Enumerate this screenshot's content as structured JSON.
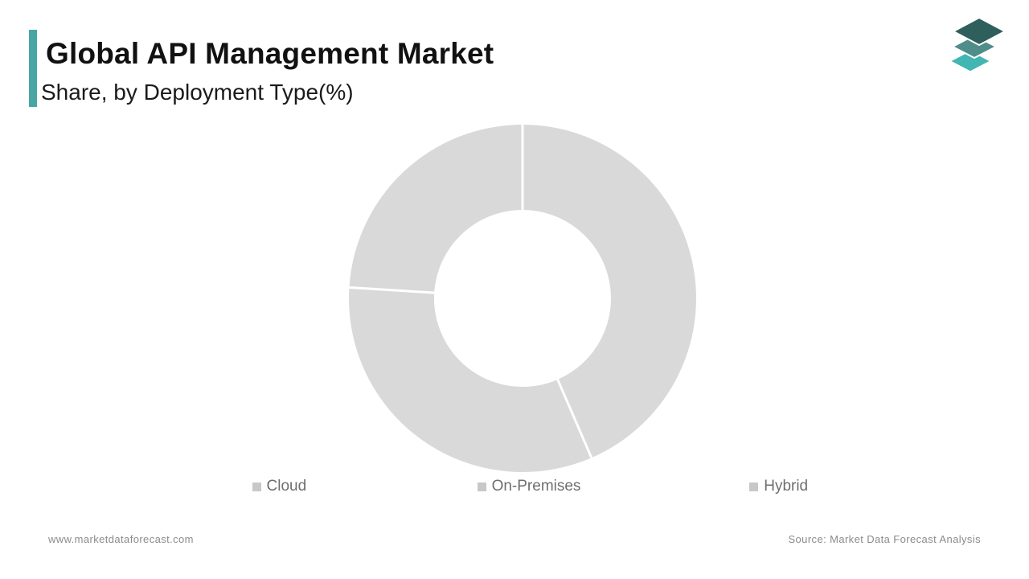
{
  "header": {
    "title": "Global API Management Market",
    "subtitle": "Share, by Deployment Type(%)",
    "accent_color": "#48A7A5"
  },
  "logo": {
    "name": "market-data-forecast-logo",
    "layer_colors": [
      "#41B6B2",
      "#4F8D8A",
      "#2E5F5D"
    ]
  },
  "chart_data": {
    "type": "pie",
    "subtype": "donut",
    "title": "Global API Management Market Share, by Deployment Type(%)",
    "categories": [
      "Cloud",
      "On-Premises",
      "Hybrid"
    ],
    "values": [
      43.5,
      32.5,
      24
    ],
    "unit": "%",
    "start_angle_deg": 0,
    "direction": "clockwise",
    "slice_colors": [
      "#D9D9D9",
      "#D9D9D9",
      "#D9D9D9"
    ],
    "divider_color": "#FFFFFF",
    "inner_radius_ratio": 0.51,
    "legend_position": "bottom",
    "data_labels_visible": false
  },
  "legend": {
    "items": [
      {
        "label": "Cloud",
        "marker_color": "#C8C8C8"
      },
      {
        "label": "On-Premises",
        "marker_color": "#C8C8C8"
      },
      {
        "label": "Hybrid",
        "marker_color": "#C8C8C8"
      }
    ]
  },
  "footer": {
    "website": "www.marketdataforecast.com",
    "source": "Source: Market Data Forecast Analysis"
  }
}
